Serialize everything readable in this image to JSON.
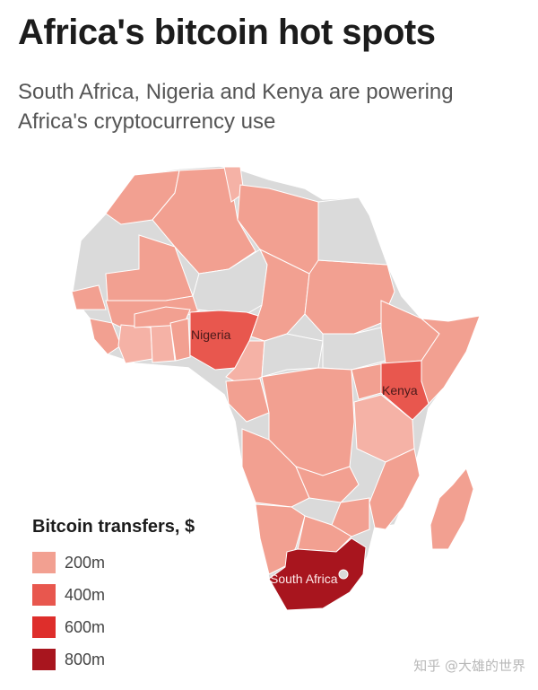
{
  "header": {
    "title": "Africa's bitcoin hot spots",
    "subtitle": "South Africa, Nigeria and Kenya are powering Africa's cryptocurrency use"
  },
  "map": {
    "labels": {
      "nigeria": "Nigeria",
      "kenya": "Kenya",
      "south_africa": "South Africa"
    },
    "colors": {
      "no_data": "#dadada",
      "light": "#f5b2a6",
      "base": "#f2a091",
      "mid": "#e8574e",
      "dark": "#a8151e"
    }
  },
  "legend": {
    "title": "Bitcoin transfers, $",
    "items": [
      {
        "label": "200m",
        "color": "#f2a091"
      },
      {
        "label": "400m",
        "color": "#e8574e"
      },
      {
        "label": "600m",
        "color": "#de2e2b"
      },
      {
        "label": "800m",
        "color": "#a8151e"
      }
    ]
  },
  "watermark": "知乎 @大雄的世界"
}
